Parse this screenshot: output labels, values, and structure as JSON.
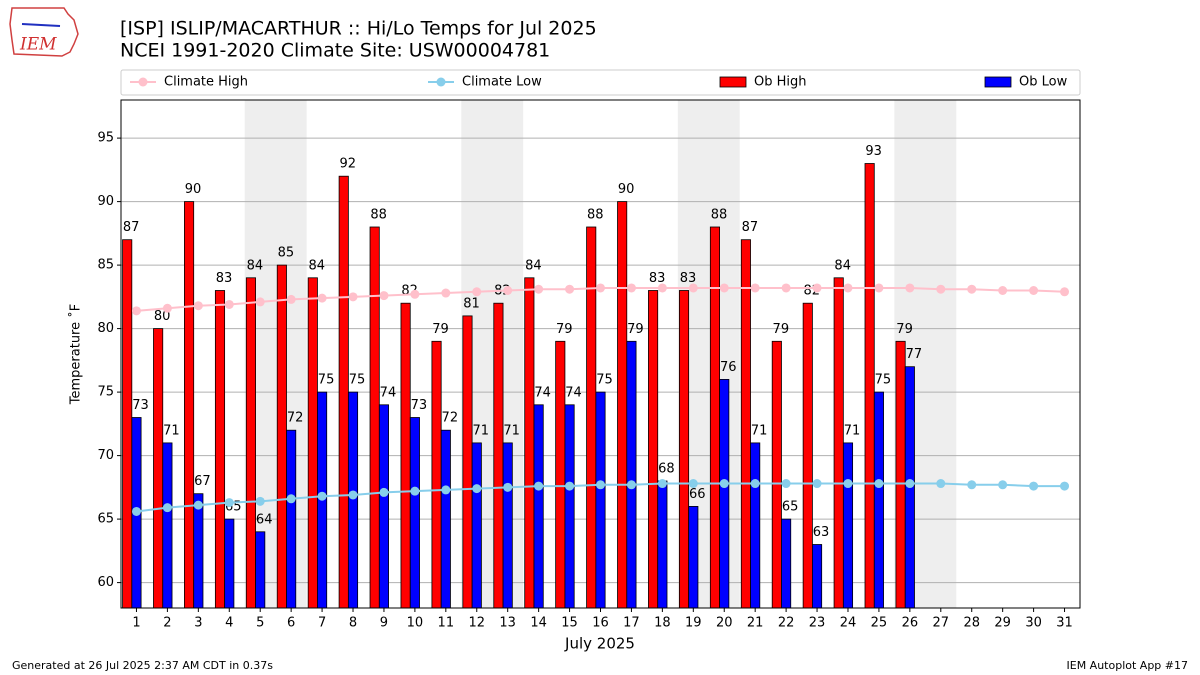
{
  "logo_text": "IEM",
  "footer": {
    "left": "Generated at 26 Jul 2025 2:37 AM CDT in 0.37s",
    "right": "IEM Autoplot App #17"
  },
  "chart_data": {
    "type": "bar",
    "title": "[ISP] ISLIP/MACARTHUR :: Hi/Lo Temps for Jul 2025",
    "subtitle": "NCEI 1991-2020 Climate Site: USW00004781",
    "xlabel": "July 2025",
    "ylabel": "Temperature ˚F",
    "x": [
      1,
      2,
      3,
      4,
      5,
      6,
      7,
      8,
      9,
      10,
      11,
      12,
      13,
      14,
      15,
      16,
      17,
      18,
      19,
      20,
      21,
      22,
      23,
      24,
      25,
      26,
      27,
      28,
      29,
      30,
      31
    ],
    "xlim": [
      0.5,
      31.5
    ],
    "xticks": [
      1,
      2,
      3,
      4,
      5,
      6,
      7,
      8,
      9,
      10,
      11,
      12,
      13,
      14,
      15,
      16,
      17,
      18,
      19,
      20,
      21,
      22,
      23,
      24,
      25,
      26,
      27,
      28,
      29,
      30,
      31
    ],
    "ylim": [
      58,
      98
    ],
    "yticks": [
      60,
      65,
      70,
      75,
      80,
      85,
      90,
      95
    ],
    "grid": true,
    "legend": "top",
    "shaded_ranges": [
      [
        4.5,
        6.5
      ],
      [
        11.5,
        13.5
      ],
      [
        18.5,
        20.5
      ],
      [
        25.5,
        27.5
      ]
    ],
    "series": [
      {
        "name": "Climate High",
        "kind": "line",
        "color": "#ffc0cb",
        "values": [
          81.4,
          81.6,
          81.8,
          81.9,
          82.1,
          82.3,
          82.4,
          82.5,
          82.6,
          82.7,
          82.8,
          82.9,
          83.0,
          83.1,
          83.1,
          83.2,
          83.2,
          83.2,
          83.2,
          83.2,
          83.2,
          83.2,
          83.2,
          83.2,
          83.2,
          83.2,
          83.1,
          83.1,
          83.0,
          83.0,
          82.9
        ]
      },
      {
        "name": "Climate Low",
        "kind": "line",
        "color": "#87ceeb",
        "values": [
          65.6,
          65.9,
          66.1,
          66.3,
          66.4,
          66.6,
          66.8,
          66.9,
          67.1,
          67.2,
          67.3,
          67.4,
          67.5,
          67.6,
          67.6,
          67.7,
          67.7,
          67.8,
          67.8,
          67.8,
          67.8,
          67.8,
          67.8,
          67.8,
          67.8,
          67.8,
          67.8,
          67.7,
          67.7,
          67.6,
          67.6
        ]
      },
      {
        "name": "Ob High",
        "kind": "bar",
        "color": "#ff0000",
        "values": [
          87,
          80,
          90,
          83,
          84,
          85,
          84,
          92,
          88,
          82,
          79,
          81,
          82,
          84,
          79,
          88,
          90,
          83,
          83,
          88,
          87,
          79,
          82,
          84,
          93,
          79,
          null,
          null,
          null,
          null,
          null
        ]
      },
      {
        "name": "Ob Low",
        "kind": "bar",
        "color": "#0000ff",
        "values": [
          73,
          71,
          67,
          65,
          64,
          72,
          75,
          75,
          74,
          73,
          72,
          71,
          71,
          74,
          74,
          75,
          79,
          68,
          66,
          76,
          71,
          65,
          63,
          71,
          75,
          77,
          null,
          null,
          null,
          null,
          null
        ]
      }
    ]
  }
}
